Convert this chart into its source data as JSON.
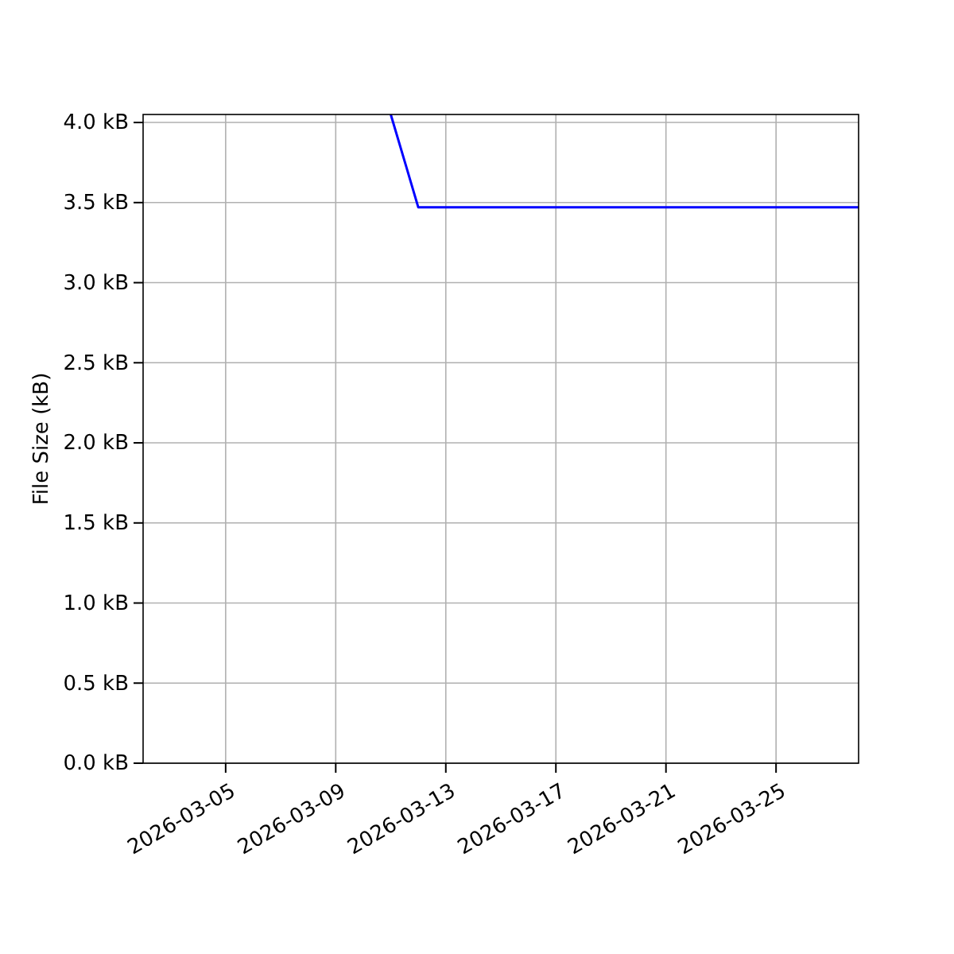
{
  "chart_data": {
    "type": "line",
    "ylabel": "File Size (kB)",
    "x": [
      "2026-03-11",
      "2026-03-12",
      "2026-03-28"
    ],
    "series": [
      {
        "color": "#0000ff",
        "values": [
          4.05,
          3.47,
          3.47
        ]
      }
    ],
    "xlim": [
      "2026-03-02",
      "2026-03-28"
    ],
    "xticks": [
      {
        "value": "2026-03-05",
        "label": "2026-03-05"
      },
      {
        "value": "2026-03-09",
        "label": "2026-03-09"
      },
      {
        "value": "2026-03-13",
        "label": "2026-03-13"
      },
      {
        "value": "2026-03-17",
        "label": "2026-03-17"
      },
      {
        "value": "2026-03-21",
        "label": "2026-03-21"
      },
      {
        "value": "2026-03-25",
        "label": "2026-03-25"
      }
    ],
    "ylim": [
      0,
      4.05
    ],
    "yticks": [
      {
        "value": 0,
        "label": "0.0 kB"
      },
      {
        "value": 0.5,
        "label": "0.5 kB"
      },
      {
        "value": 1,
        "label": "1.0 kB"
      },
      {
        "value": 1.5,
        "label": "1.5 kB"
      },
      {
        "value": 2,
        "label": "2.0 kB"
      },
      {
        "value": 2.5,
        "label": "2.5 kB"
      },
      {
        "value": 3,
        "label": "3.0 kB"
      },
      {
        "value": 3.5,
        "label": "3.5 kB"
      },
      {
        "value": 4,
        "label": "4.0 kB"
      }
    ],
    "grid": true,
    "line_style": "solid"
  }
}
